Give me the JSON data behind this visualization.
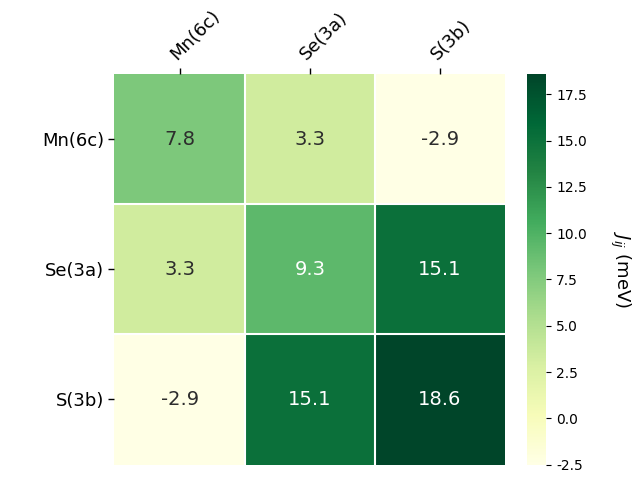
{
  "labels": [
    "Mn(6c)",
    "Se(3a)",
    "S(3b)"
  ],
  "matrix": [
    [
      7.8,
      3.3,
      -2.9
    ],
    [
      3.3,
      9.3,
      15.1
    ],
    [
      -2.9,
      15.1,
      18.6
    ]
  ],
  "vmin": -2.5,
  "vmax": 18.6,
  "cmap": "YlGn",
  "colorbar_label": "$J_{ij}$ (meV)",
  "colorbar_ticks": [
    -2.5,
    0.0,
    2.5,
    5.0,
    7.5,
    10.0,
    12.5,
    15.0,
    17.5
  ],
  "text_threshold": 8.0,
  "text_color_light": "#2d2d2d",
  "text_color_dark": "white",
  "fontsize_cells": 14,
  "fontsize_labels": 13,
  "fontsize_colorbar": 13,
  "figsize": [
    6.4,
    4.8
  ],
  "dpi": 100
}
